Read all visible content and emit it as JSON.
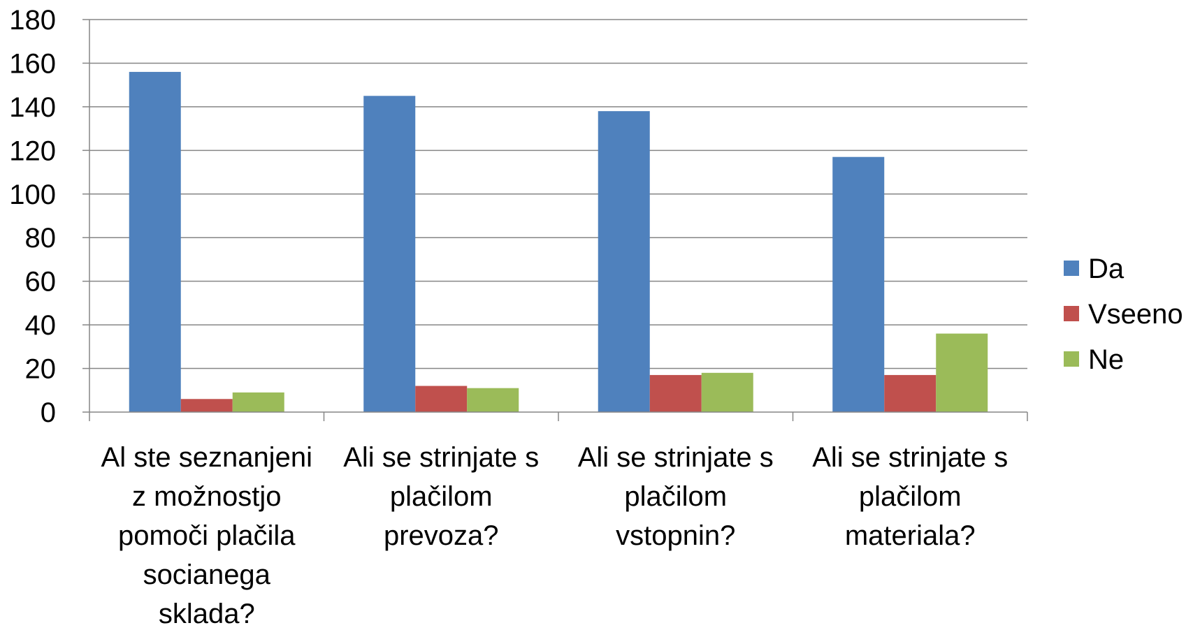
{
  "chart_data": {
    "type": "bar",
    "title": "",
    "xlabel": "",
    "ylabel": "",
    "ylim": [
      0,
      180
    ],
    "yticks": [
      0,
      20,
      40,
      60,
      80,
      100,
      120,
      140,
      160,
      180
    ],
    "grid": true,
    "legend_position": "right",
    "categories": [
      [
        "Al ste seznanjeni",
        "z možnostjo",
        "pomoči plačila",
        "socianega",
        "sklada?"
      ],
      [
        "Ali se strinjate s",
        "plačilom",
        "prevoza?"
      ],
      [
        "Ali se strinjate s",
        "plačilom",
        "vstopnin?"
      ],
      [
        "Ali se strinjate s",
        "plačilom",
        "materiala?"
      ]
    ],
    "series": [
      {
        "name": "Da",
        "color": "#4F81BD",
        "values": [
          156,
          145,
          138,
          117
        ]
      },
      {
        "name": "Vseeno",
        "color": "#C0504D",
        "values": [
          6,
          12,
          17,
          17
        ]
      },
      {
        "name": "Ne",
        "color": "#9BBB59",
        "values": [
          9,
          11,
          18,
          36
        ]
      }
    ]
  }
}
